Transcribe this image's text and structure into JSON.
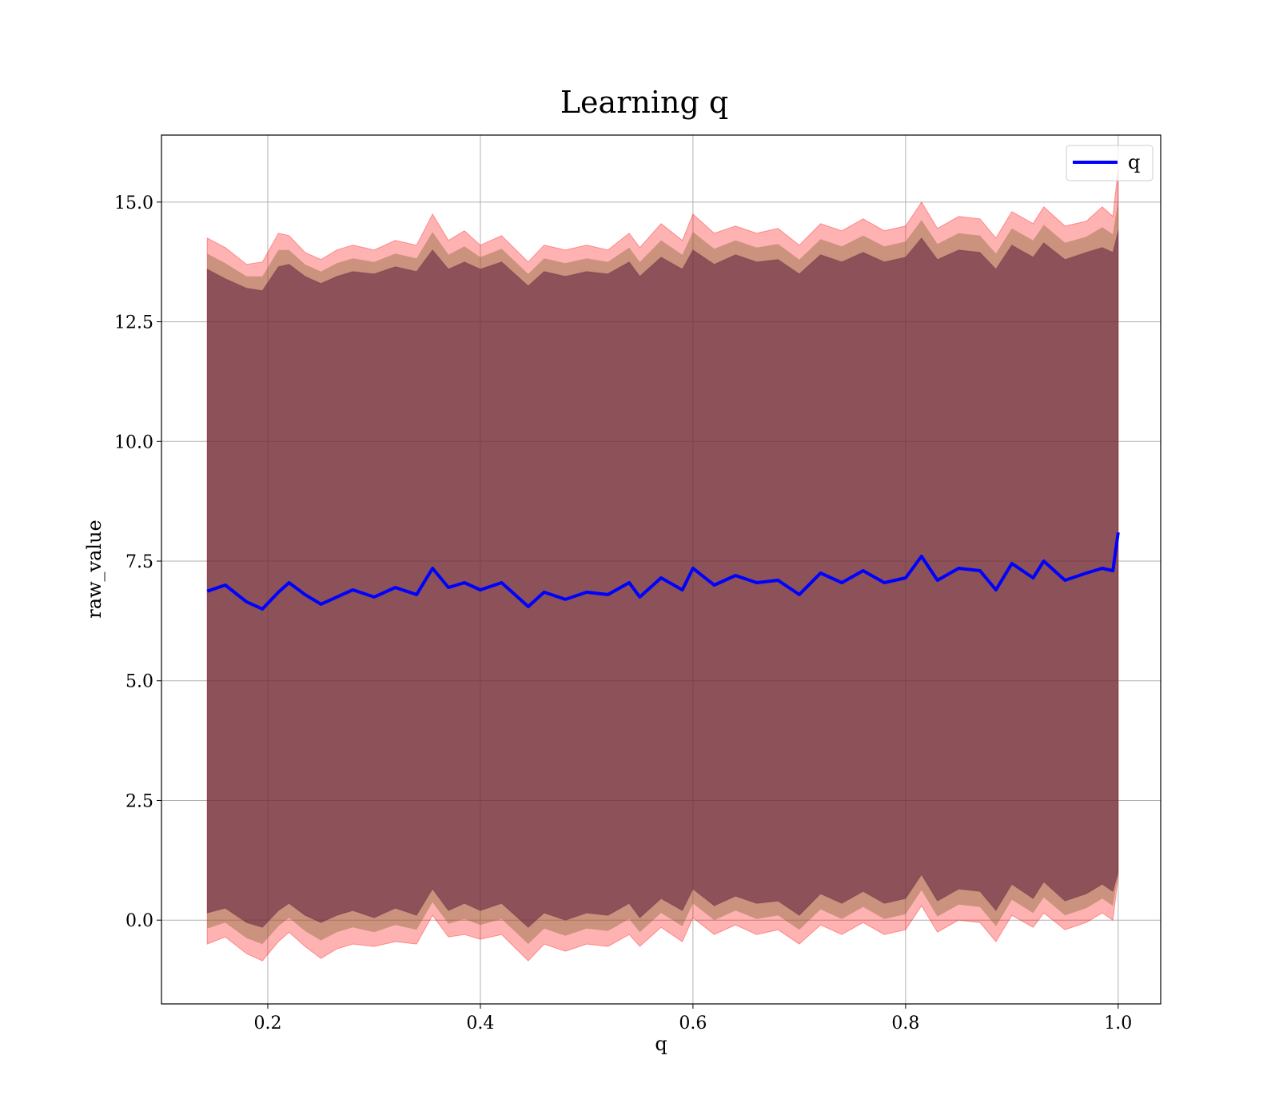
{
  "chart_data": {
    "type": "line",
    "title": "Learning q",
    "xlabel": "q",
    "ylabel": "raw_value",
    "xlim": [
      0.1,
      1.04
    ],
    "ylim": [
      -1.75,
      16.4
    ],
    "x_ticks": [
      "0.2",
      "0.4",
      "0.6",
      "0.8",
      "1.0"
    ],
    "x_tick_values": [
      0.2,
      0.4,
      0.6,
      0.8,
      1.0
    ],
    "y_ticks": [
      "0.0",
      "2.5",
      "5.0",
      "7.5",
      "10.0",
      "12.5",
      "15.0"
    ],
    "y_tick_values": [
      0.0,
      2.5,
      5.0,
      7.5,
      10.0,
      12.5,
      15.0
    ],
    "grid": true,
    "legend": {
      "position": "top-right",
      "entries": [
        "q"
      ]
    },
    "colors": {
      "line": "#0000ff",
      "band_outer": "#ff0000",
      "band_middle": "#8b6a3e",
      "band_inner": "#5a1b3a"
    },
    "series": [
      {
        "name": "q",
        "x": [
          0.143,
          0.16,
          0.18,
          0.195,
          0.21,
          0.22,
          0.235,
          0.25,
          0.265,
          0.28,
          0.3,
          0.32,
          0.34,
          0.355,
          0.37,
          0.385,
          0.4,
          0.42,
          0.445,
          0.46,
          0.48,
          0.5,
          0.52,
          0.54,
          0.55,
          0.57,
          0.59,
          0.6,
          0.62,
          0.64,
          0.66,
          0.68,
          0.7,
          0.72,
          0.74,
          0.76,
          0.78,
          0.8,
          0.815,
          0.83,
          0.85,
          0.87,
          0.885,
          0.9,
          0.92,
          0.93,
          0.95,
          0.97,
          0.985,
          0.995,
          1.0
        ],
        "y": [
          6.87,
          7.0,
          6.65,
          6.5,
          6.85,
          7.05,
          6.8,
          6.6,
          6.75,
          6.9,
          6.75,
          6.95,
          6.8,
          7.35,
          6.95,
          7.05,
          6.9,
          7.05,
          6.55,
          6.85,
          6.7,
          6.85,
          6.8,
          7.05,
          6.75,
          7.15,
          6.9,
          7.35,
          7.0,
          7.2,
          7.05,
          7.1,
          6.8,
          7.25,
          7.05,
          7.3,
          7.05,
          7.15,
          7.6,
          7.1,
          7.35,
          7.3,
          6.9,
          7.45,
          7.15,
          7.5,
          7.1,
          7.25,
          7.35,
          7.3,
          8.1
        ],
        "band_outer_upper": [
          14.25,
          14.05,
          13.7,
          13.75,
          14.35,
          14.3,
          13.95,
          13.8,
          14.0,
          14.1,
          14.0,
          14.2,
          14.1,
          14.75,
          14.2,
          14.4,
          14.1,
          14.3,
          13.75,
          14.1,
          14.0,
          14.1,
          14.0,
          14.35,
          14.05,
          14.55,
          14.2,
          14.75,
          14.35,
          14.5,
          14.35,
          14.45,
          14.1,
          14.55,
          14.4,
          14.65,
          14.4,
          14.5,
          15.0,
          14.45,
          14.7,
          14.65,
          14.25,
          14.8,
          14.55,
          14.9,
          14.5,
          14.6,
          14.9,
          14.7,
          15.7
        ],
        "band_outer_lower": [
          -0.5,
          -0.35,
          -0.7,
          -0.85,
          -0.45,
          -0.25,
          -0.55,
          -0.8,
          -0.6,
          -0.5,
          -0.55,
          -0.45,
          -0.5,
          0.1,
          -0.35,
          -0.3,
          -0.4,
          -0.3,
          -0.85,
          -0.5,
          -0.65,
          -0.5,
          -0.55,
          -0.3,
          -0.55,
          -0.15,
          -0.45,
          0.05,
          -0.3,
          -0.1,
          -0.3,
          -0.2,
          -0.5,
          -0.1,
          -0.3,
          -0.05,
          -0.3,
          -0.2,
          0.3,
          -0.25,
          0.0,
          -0.05,
          -0.45,
          0.1,
          -0.15,
          0.15,
          -0.2,
          -0.05,
          0.15,
          0.0,
          0.9
        ],
        "band_inner_upper": [
          13.6,
          13.4,
          13.2,
          13.15,
          13.65,
          13.7,
          13.45,
          13.3,
          13.45,
          13.55,
          13.5,
          13.65,
          13.55,
          14.0,
          13.6,
          13.75,
          13.6,
          13.75,
          13.25,
          13.55,
          13.45,
          13.55,
          13.5,
          13.75,
          13.45,
          13.85,
          13.6,
          14.0,
          13.7,
          13.9,
          13.75,
          13.8,
          13.5,
          13.9,
          13.75,
          13.95,
          13.75,
          13.85,
          14.25,
          13.8,
          14.0,
          13.95,
          13.6,
          14.1,
          13.85,
          14.15,
          13.8,
          13.95,
          14.05,
          13.95,
          14.4
        ],
        "band_inner_lower": [
          0.15,
          0.25,
          -0.05,
          -0.15,
          0.2,
          0.35,
          0.1,
          -0.05,
          0.1,
          0.2,
          0.05,
          0.25,
          0.1,
          0.65,
          0.2,
          0.35,
          0.2,
          0.35,
          -0.15,
          0.15,
          0.0,
          0.15,
          0.1,
          0.35,
          0.05,
          0.45,
          0.2,
          0.65,
          0.3,
          0.5,
          0.35,
          0.4,
          0.1,
          0.55,
          0.35,
          0.6,
          0.35,
          0.45,
          0.95,
          0.4,
          0.65,
          0.6,
          0.2,
          0.75,
          0.45,
          0.8,
          0.4,
          0.55,
          0.75,
          0.6,
          1.0
        ]
      }
    ]
  }
}
